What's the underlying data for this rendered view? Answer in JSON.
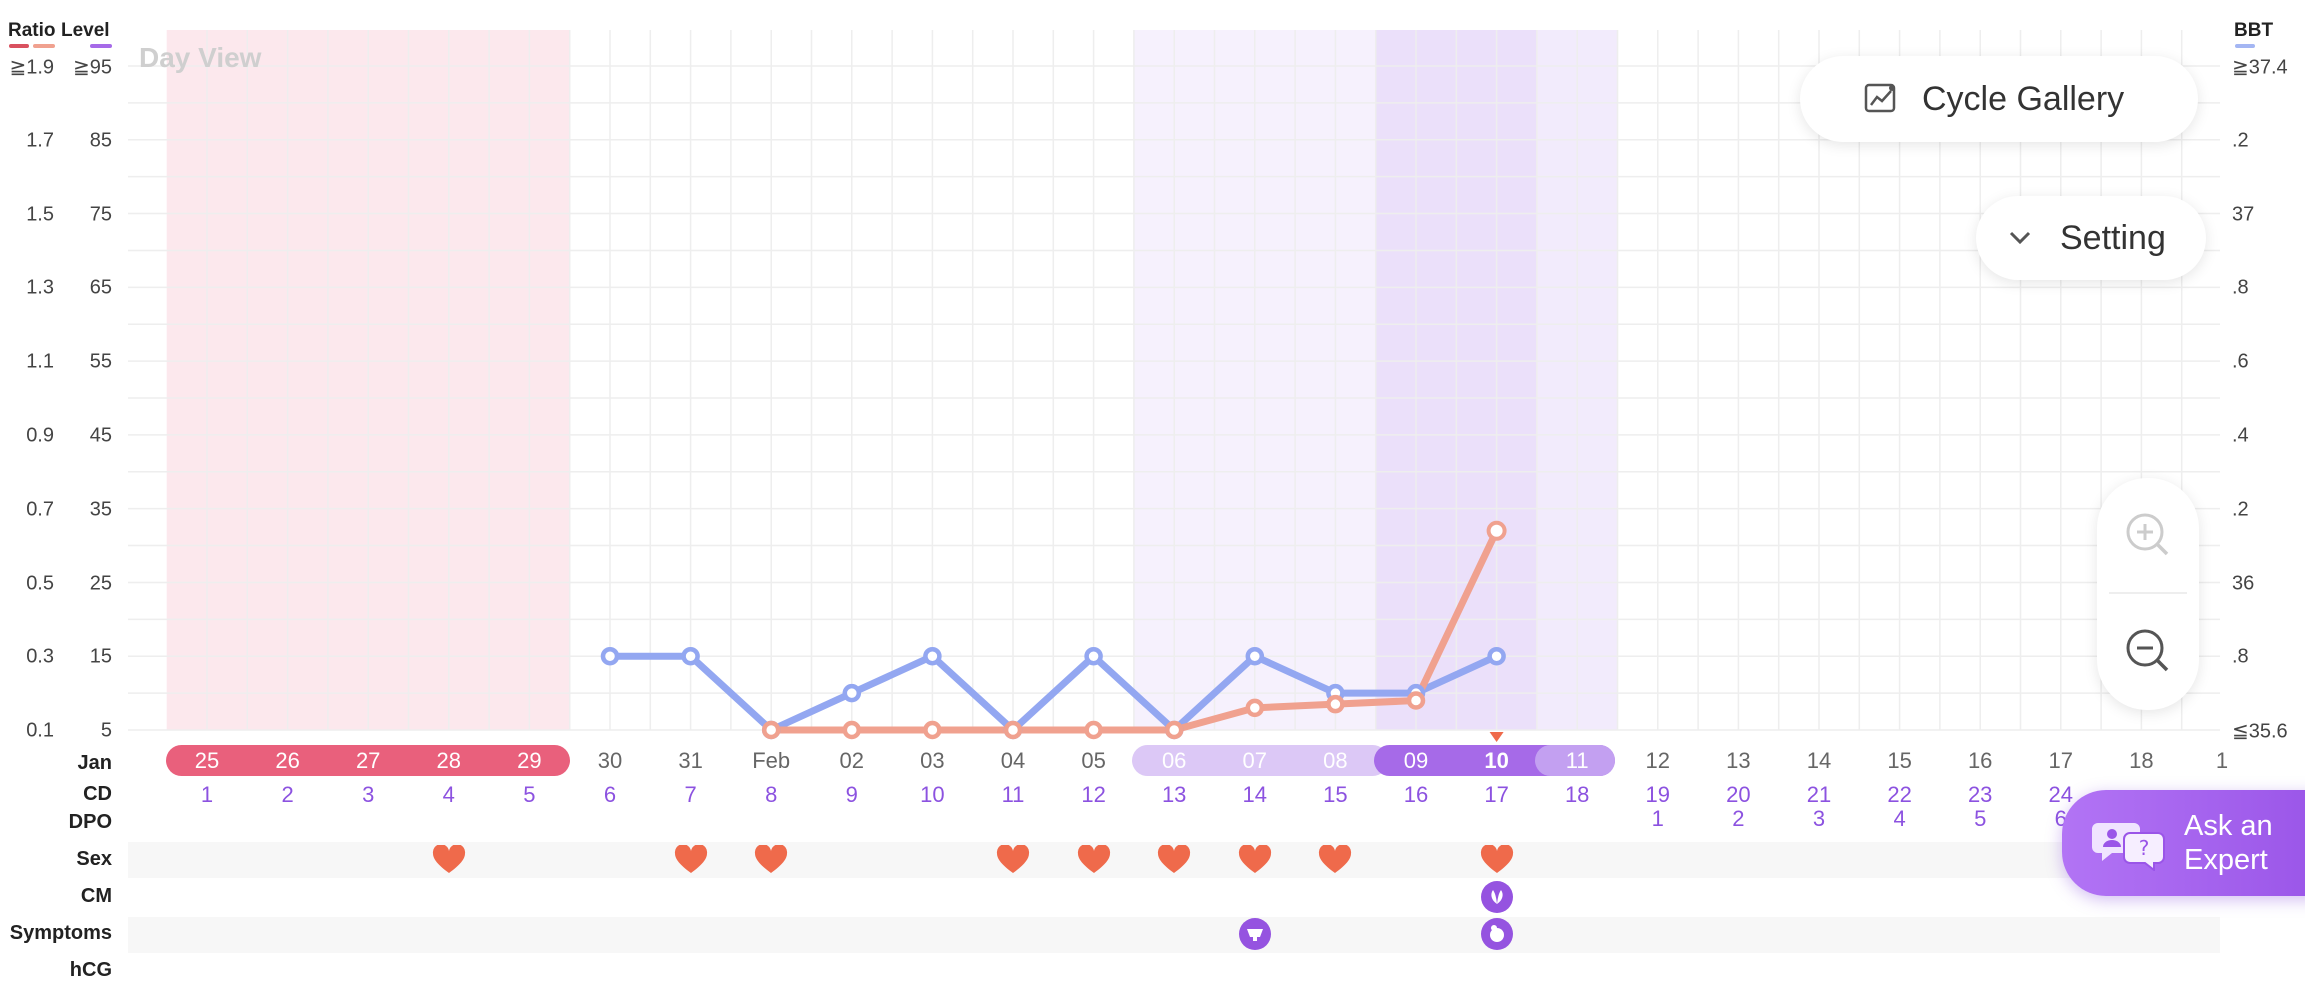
{
  "header": {
    "ratio_label": "Ratio",
    "level_label": "Level",
    "bbt_label": "BBT",
    "day_view": "Day View"
  },
  "colors": {
    "lh_line": "#f0a18f",
    "bbt_line": "#93a7f1",
    "period": "#e9607c",
    "fertile": "#c9aef2",
    "ovulation": "#a66ae8",
    "heart": "#ef6a4b",
    "ratio_underline": "#d9515f",
    "level_underline": "#f0a18f",
    "bbt_underline": "#a4b6f3"
  },
  "axes": {
    "ratio_ticks": [
      "≧1.9",
      "1.7",
      "1.5",
      "1.3",
      "1.1",
      "0.9",
      "0.7",
      "0.5",
      "0.3",
      "0.1"
    ],
    "level_ticks": [
      "≧95",
      "85",
      "75",
      "65",
      "55",
      "45",
      "35",
      "25",
      "15",
      "5"
    ],
    "bbt_ticks": [
      "≧37.4",
      ".2",
      "37",
      ".8",
      ".6",
      ".4",
      ".2",
      "36",
      ".8",
      "≦35.6"
    ]
  },
  "row_labels": {
    "month": "Jan",
    "cd": "CD",
    "dpo": "DPO",
    "sex": "Sex",
    "cm": "CM",
    "symptoms": "Symptoms",
    "hcg": "hCG"
  },
  "dates": [
    "25",
    "26",
    "27",
    "28",
    "29",
    "30",
    "31",
    "Feb",
    "02",
    "03",
    "04",
    "05",
    "06",
    "07",
    "08",
    "09",
    "10",
    "11",
    "12",
    "13",
    "14",
    "15",
    "16",
    "17",
    "18",
    "1"
  ],
  "cd": [
    "1",
    "2",
    "3",
    "4",
    "5",
    "6",
    "7",
    "8",
    "9",
    "10",
    "11",
    "12",
    "13",
    "14",
    "15",
    "16",
    "17",
    "18",
    "19",
    "20",
    "21",
    "22",
    "23",
    "24",
    "",
    ""
  ],
  "dpo": [
    "",
    "",
    "",
    "",
    "",
    "",
    "",
    "",
    "",
    "",
    "",
    "",
    "",
    "",
    "",
    "",
    "",
    "",
    "1",
    "2",
    "3",
    "4",
    "5",
    "6",
    "",
    ""
  ],
  "sex_days": [
    3,
    6,
    7,
    10,
    11,
    12,
    13,
    14,
    16
  ],
  "cm_days": [
    16
  ],
  "symptom_days": [
    13,
    16
  ],
  "today_index": 16,
  "chart_data": {
    "type": "line",
    "x": [
      "Jan 30",
      "Jan 31",
      "Feb 01",
      "Feb 02",
      "Feb 03",
      "Feb 04",
      "Feb 05",
      "Feb 06",
      "Feb 07",
      "Feb 08",
      "Feb 09",
      "Feb 10"
    ],
    "series": [
      {
        "name": "BBT",
        "axis": "right",
        "values": [
          35.8,
          35.8,
          35.6,
          35.7,
          35.8,
          35.6,
          35.8,
          35.6,
          35.8,
          35.7,
          35.7,
          35.8
        ]
      },
      {
        "name": "LH Level",
        "axis": "left",
        "values": [
          null,
          null,
          5,
          5,
          5,
          5,
          5,
          5,
          8,
          8.5,
          9,
          32
        ]
      }
    ],
    "ylim_left": [
      5,
      95
    ],
    "ylim_right": [
      35.6,
      37.4
    ]
  },
  "buttons": {
    "cycle_gallery": "Cycle Gallery",
    "setting": "Setting",
    "ask_line1": "Ask an",
    "ask_line2": "Expert"
  }
}
